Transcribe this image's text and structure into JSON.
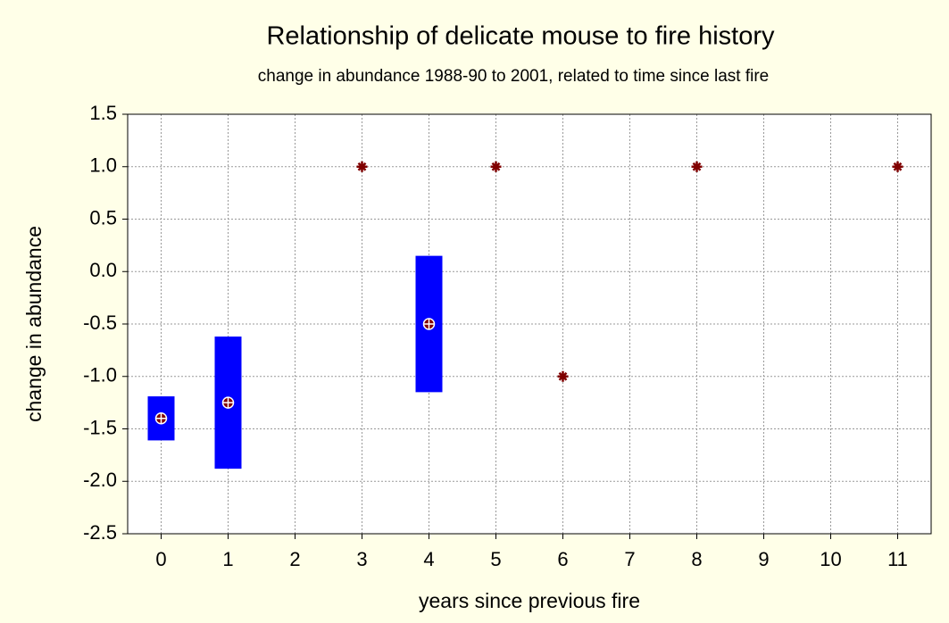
{
  "chart_data": {
    "type": "errorbar",
    "title": "Relationship of delicate mouse to fire history",
    "subtitle": "change in abundance 1988-90 to 2001, related to time since last fire",
    "x_label": "years since previous fire",
    "y_label": "change in abundance",
    "categories": [
      "0",
      "1",
      "2",
      "3",
      "4",
      "5",
      "6",
      "7",
      "8",
      "9",
      "10",
      "11"
    ],
    "values": [
      -1.4,
      -1.25,
      null,
      1.0,
      -0.5,
      1.0,
      -1.0,
      null,
      1.0,
      null,
      null,
      1.0
    ],
    "errors": [
      0.21,
      0.63,
      null,
      null,
      0.65,
      null,
      null,
      null,
      null,
      null,
      null,
      null
    ],
    "color": "#800000",
    "error_color": "#0000ff",
    "ylim": [
      -2.5,
      1.5
    ],
    "yticks": [
      -2.5,
      {
        "value": -2.0,
        "label": "-2.0"
      },
      -1.5,
      {
        "value": -1.0,
        "label": "-1.0"
      },
      -0.5,
      {
        "value": 0.0,
        "label": "0.0"
      },
      0.5,
      {
        "value": 1.0,
        "label": "1.0"
      },
      1.5
    ],
    "grid": true
  }
}
